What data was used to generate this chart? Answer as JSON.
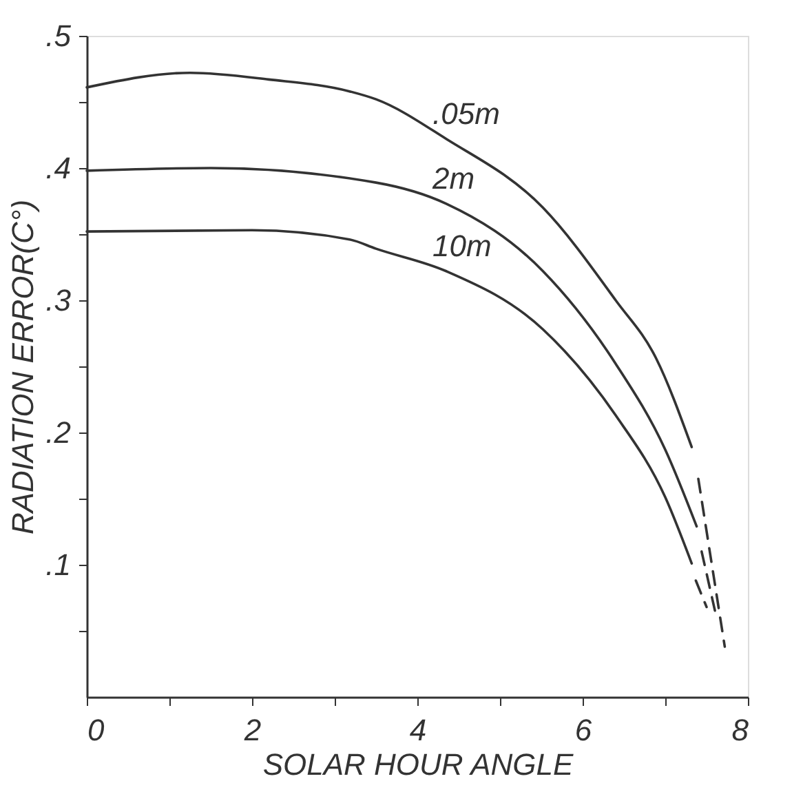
{
  "chart_data": {
    "type": "line",
    "xlabel": "SOLAR HOUR ANGLE",
    "ylabel": "RADIATION ERROR(C°)",
    "xlim": [
      0,
      8
    ],
    "ylim": [
      0,
      0.5
    ],
    "xticks": [
      0,
      {
        "value": 1,
        "label": null
      },
      2,
      {
        "value": 3,
        "label": null
      },
      4,
      {
        "value": 5,
        "label": null
      },
      6,
      {
        "value": 7,
        "label": null
      },
      8
    ],
    "yticks": [
      {
        "value": 0.05,
        "label": null
      },
      {
        "value": 0.1,
        "label": ".1"
      },
      {
        "value": 0.15,
        "label": null
      },
      {
        "value": 0.2,
        "label": ".2"
      },
      {
        "value": 0.25,
        "label": null
      },
      {
        "value": 0.3,
        "label": ".3"
      },
      {
        "value": 0.35,
        "label": null
      },
      {
        "value": 0.4,
        "label": ".4"
      },
      {
        "value": 0.45,
        "label": null
      },
      {
        "value": 0.5,
        "label": ".5"
      }
    ],
    "grid": false,
    "marker": "none",
    "series": [
      {
        "name": ".05m",
        "color": "#333333",
        "line_style": "solid",
        "x": [
          0,
          1.25,
          2.2,
          3.18,
          3.5,
          4.35,
          5.52,
          6.4,
          6.89,
          7.32
        ],
        "values": [
          0.461,
          0.472,
          0.467,
          0.458,
          0.452,
          0.422,
          0.37,
          0.3,
          0.256,
          0.189
        ]
      },
      {
        "name": "2m",
        "color": "#333333",
        "line_style": "solid",
        "x": [
          0,
          1.5,
          3.5,
          4.35,
          5.52,
          6.4,
          7.0,
          7.38
        ],
        "values": [
          0.398,
          0.4,
          0.389,
          0.373,
          0.322,
          0.252,
          0.187,
          0.129
        ]
      },
      {
        "name": "10m",
        "color": "#333333",
        "line_style": "solid",
        "x": [
          0,
          2.0,
          3.18,
          3.5,
          4.35,
          5.52,
          6.4,
          7.0,
          7.32
        ],
        "values": [
          0.352,
          0.353,
          0.346,
          0.339,
          0.322,
          0.278,
          0.213,
          0.151,
          0.101
        ]
      },
      {
        "color": "#333333",
        "line_style": "dashed",
        "x": [
          7.4,
          7.72
        ],
        "values": [
          0.165,
          0.038
        ]
      },
      {
        "color": "#333333",
        "line_style": "dashed",
        "x": [
          7.44,
          7.62
        ],
        "values": [
          0.11,
          0.06
        ]
      },
      {
        "color": "#333333",
        "line_style": "dashed",
        "x": [
          7.37,
          7.5
        ],
        "values": [
          0.088,
          0.068
        ]
      }
    ]
  }
}
